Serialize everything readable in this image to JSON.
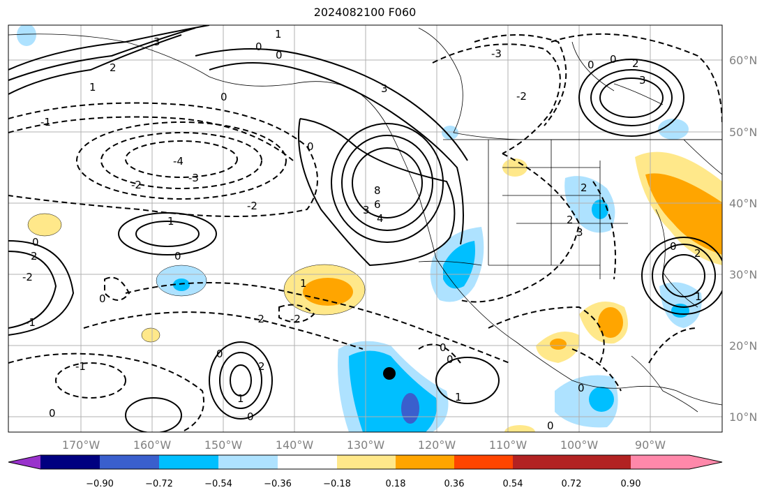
{
  "title": "2024082100 F060",
  "chart_data": {
    "type": "map",
    "title": "2024082100 F060",
    "lon_ticks": [
      "170°W",
      "160°W",
      "150°W",
      "140°W",
      "130°W",
      "120°W",
      "110°W",
      "100°W",
      "90°W"
    ],
    "lat_ticks": [
      "60°N",
      "50°N",
      "40°N",
      "30°N",
      "20°N",
      "10°N"
    ],
    "colorbar": {
      "labels": [
        "−0.90",
        "−0.72",
        "−0.54",
        "−0.36",
        "−0.18",
        "0.18",
        "0.36",
        "0.54",
        "0.72",
        "0.90"
      ],
      "colors": [
        "#9932cc",
        "#000080",
        "#3a5fcd",
        "#00bfff",
        "#aee2ff",
        "#ffffff",
        "#ffe88a",
        "#ffa500",
        "#ff4500",
        "#b22222",
        "#ff88aa"
      ],
      "extend": "both"
    },
    "contour_labels": [
      "0",
      "1",
      "2",
      "3",
      "4",
      "6",
      "8",
      "-1",
      "-2",
      "-3",
      "-4"
    ],
    "marker": "black-dot"
  }
}
